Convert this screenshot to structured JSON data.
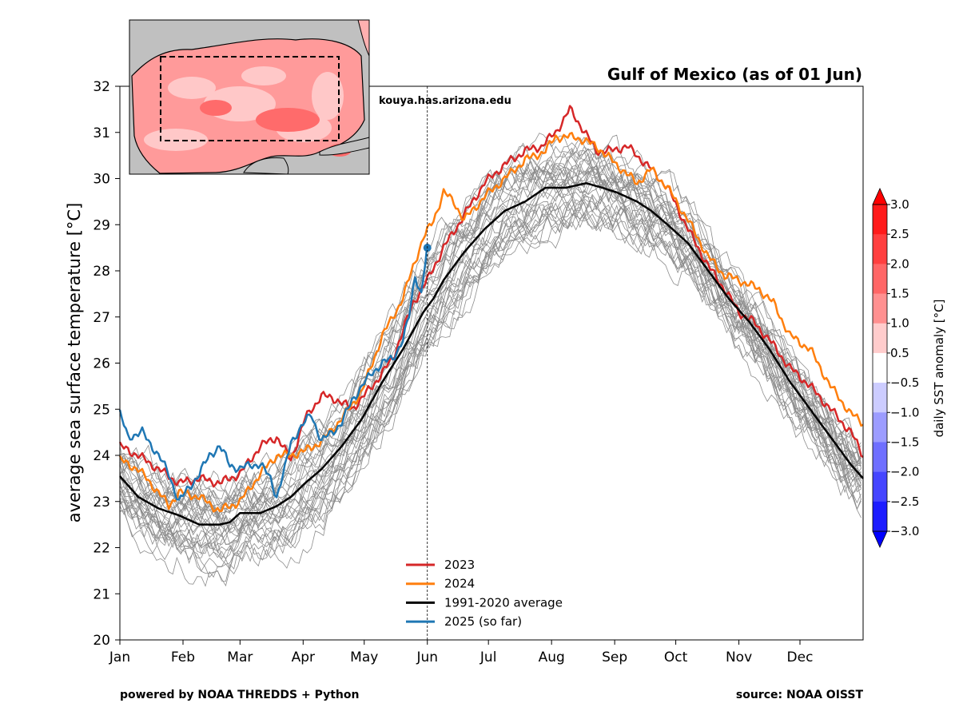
{
  "chart_data": {
    "type": "line",
    "title": "Gulf of Mexico (as of 01 Jun)",
    "ylabel": "average sea surface temperature [°C]",
    "xlabel": "",
    "ylim": [
      20,
      32
    ],
    "yticks": [
      20,
      21,
      22,
      23,
      24,
      25,
      26,
      27,
      28,
      29,
      30,
      31,
      32
    ],
    "x_domain": [
      1,
      366
    ],
    "x_unit": "day of year",
    "month_ticks": [
      {
        "label": "Jan",
        "day": 1
      },
      {
        "label": "Feb",
        "day": 32
      },
      {
        "label": "Mar",
        "day": 60
      },
      {
        "label": "Apr",
        "day": 91
      },
      {
        "label": "May",
        "day": 121
      },
      {
        "label": "Jun",
        "day": 152
      },
      {
        "label": "Jul",
        "day": 182
      },
      {
        "label": "Aug",
        "day": 213
      },
      {
        "label": "Sep",
        "day": 244
      },
      {
        "label": "Oct",
        "day": 274
      },
      {
        "label": "Nov",
        "day": 305
      },
      {
        "label": "Dec",
        "day": 335
      }
    ],
    "reference_line": {
      "day": 152,
      "style": "dotted"
    },
    "watermark": "kouya.has.arizona.edu",
    "grid": false,
    "legend_position": "lower-center",
    "series": [
      {
        "name": "2023",
        "color": "#d62728",
        "width": 2.5,
        "points": [
          [
            1,
            24.2
          ],
          [
            10,
            24.0
          ],
          [
            20,
            23.7
          ],
          [
            30,
            23.4
          ],
          [
            40,
            23.5
          ],
          [
            50,
            23.4
          ],
          [
            60,
            23.6
          ],
          [
            70,
            24.2
          ],
          [
            78,
            24.4
          ],
          [
            85,
            23.9
          ],
          [
            92,
            24.8
          ],
          [
            100,
            25.3
          ],
          [
            108,
            25.2
          ],
          [
            115,
            25.0
          ],
          [
            125,
            25.5
          ],
          [
            135,
            26.1
          ],
          [
            145,
            27.3
          ],
          [
            152,
            27.8
          ],
          [
            160,
            28.5
          ],
          [
            170,
            29.2
          ],
          [
            180,
            29.9
          ],
          [
            190,
            30.3
          ],
          [
            200,
            30.6
          ],
          [
            208,
            30.7
          ],
          [
            215,
            31.0
          ],
          [
            222,
            31.5
          ],
          [
            228,
            31.1
          ],
          [
            235,
            30.6
          ],
          [
            242,
            30.6
          ],
          [
            250,
            30.7
          ],
          [
            255,
            30.5
          ],
          [
            262,
            30.2
          ],
          [
            270,
            29.8
          ],
          [
            280,
            28.9
          ],
          [
            290,
            28.1
          ],
          [
            298,
            27.6
          ],
          [
            305,
            27.1
          ],
          [
            312,
            26.9
          ],
          [
            320,
            26.5
          ],
          [
            330,
            25.9
          ],
          [
            340,
            25.5
          ],
          [
            350,
            25.0
          ],
          [
            360,
            24.5
          ],
          [
            366,
            24.0
          ]
        ]
      },
      {
        "name": "2024",
        "color": "#ff7f0e",
        "width": 2.5,
        "points": [
          [
            1,
            23.9
          ],
          [
            10,
            23.7
          ],
          [
            20,
            23.2
          ],
          [
            25,
            22.9
          ],
          [
            30,
            23.2
          ],
          [
            40,
            23.1
          ],
          [
            50,
            22.8
          ],
          [
            60,
            23.0
          ],
          [
            70,
            23.6
          ],
          [
            78,
            24.0
          ],
          [
            85,
            24.0
          ],
          [
            92,
            24.1
          ],
          [
            100,
            24.3
          ],
          [
            110,
            24.8
          ],
          [
            120,
            25.4
          ],
          [
            130,
            26.6
          ],
          [
            140,
            27.4
          ],
          [
            145,
            28.1
          ],
          [
            150,
            28.7
          ],
          [
            155,
            29.1
          ],
          [
            160,
            29.7
          ],
          [
            165,
            29.5
          ],
          [
            170,
            29.1
          ],
          [
            180,
            29.6
          ],
          [
            190,
            30.0
          ],
          [
            200,
            30.4
          ],
          [
            210,
            30.6
          ],
          [
            215,
            30.9
          ],
          [
            225,
            30.9
          ],
          [
            235,
            30.7
          ],
          [
            245,
            30.3
          ],
          [
            255,
            29.9
          ],
          [
            262,
            30.2
          ],
          [
            270,
            29.8
          ],
          [
            280,
            29.1
          ],
          [
            290,
            28.3
          ],
          [
            298,
            27.9
          ],
          [
            305,
            27.8
          ],
          [
            315,
            27.6
          ],
          [
            322,
            27.3
          ],
          [
            330,
            26.6
          ],
          [
            340,
            26.3
          ],
          [
            350,
            25.5
          ],
          [
            360,
            24.9
          ],
          [
            366,
            24.7
          ]
        ]
      },
      {
        "name": "1991-2020 average",
        "color": "#000000",
        "width": 2.5,
        "points": [
          [
            1,
            23.55
          ],
          [
            10,
            23.1
          ],
          [
            20,
            22.85
          ],
          [
            30,
            22.7
          ],
          [
            40,
            22.5
          ],
          [
            50,
            22.5
          ],
          [
            55,
            22.55
          ],
          [
            60,
            22.75
          ],
          [
            70,
            22.75
          ],
          [
            78,
            22.9
          ],
          [
            85,
            23.1
          ],
          [
            92,
            23.4
          ],
          [
            100,
            23.7
          ],
          [
            110,
            24.2
          ],
          [
            120,
            24.8
          ],
          [
            130,
            25.6
          ],
          [
            140,
            26.3
          ],
          [
            150,
            27.1
          ],
          [
            155,
            27.4
          ],
          [
            160,
            27.8
          ],
          [
            170,
            28.4
          ],
          [
            180,
            28.9
          ],
          [
            190,
            29.3
          ],
          [
            200,
            29.5
          ],
          [
            210,
            29.8
          ],
          [
            220,
            29.8
          ],
          [
            230,
            29.9
          ],
          [
            238,
            29.8
          ],
          [
            245,
            29.7
          ],
          [
            255,
            29.5
          ],
          [
            262,
            29.3
          ],
          [
            270,
            29.0
          ],
          [
            280,
            28.6
          ],
          [
            290,
            28.0
          ],
          [
            300,
            27.4
          ],
          [
            310,
            26.9
          ],
          [
            320,
            26.3
          ],
          [
            330,
            25.6
          ],
          [
            340,
            25.0
          ],
          [
            350,
            24.4
          ],
          [
            360,
            23.8
          ],
          [
            366,
            23.5
          ]
        ]
      },
      {
        "name": "2025 (so far)",
        "color": "#1f77b4",
        "width": 2.5,
        "end_marker": true,
        "points": [
          [
            1,
            24.9
          ],
          [
            5,
            24.4
          ],
          [
            12,
            24.5
          ],
          [
            20,
            24.0
          ],
          [
            25,
            23.6
          ],
          [
            30,
            23.0
          ],
          [
            35,
            23.3
          ],
          [
            40,
            23.6
          ],
          [
            45,
            24.0
          ],
          [
            50,
            24.2
          ],
          [
            55,
            23.8
          ],
          [
            60,
            23.7
          ],
          [
            65,
            23.8
          ],
          [
            70,
            23.8
          ],
          [
            75,
            23.5
          ],
          [
            78,
            23.1
          ],
          [
            82,
            23.7
          ],
          [
            85,
            24.3
          ],
          [
            90,
            24.6
          ],
          [
            95,
            24.9
          ],
          [
            100,
            24.3
          ],
          [
            105,
            24.5
          ],
          [
            110,
            24.7
          ],
          [
            115,
            25.2
          ],
          [
            120,
            25.5
          ],
          [
            125,
            25.8
          ],
          [
            130,
            26.0
          ],
          [
            135,
            26.1
          ],
          [
            140,
            26.5
          ],
          [
            143,
            27.0
          ],
          [
            146,
            27.9
          ],
          [
            149,
            27.5
          ],
          [
            152,
            28.5
          ]
        ]
      }
    ],
    "background_years_note": "thin gray lines show individual years",
    "colorbar": {
      "label": "daily SST anomaly [°C]",
      "ticks": [
        "3.0",
        "2.5",
        "2.0",
        "1.5",
        "1.0",
        "0.5",
        "−0.5",
        "−1.0",
        "−1.5",
        "−2.0",
        "−2.5",
        "−3.0"
      ],
      "bins": [
        "#ff1a1a",
        "#ff3f3f",
        "#ff6666",
        "#ff9090",
        "#ffcccc",
        "#ffffff",
        "#ccccff",
        "#9c9cff",
        "#6f6fff",
        "#4545ff",
        "#1c1cff"
      ],
      "extend_top_color": "#ff0000",
      "extend_bottom_color": "#0000ff"
    }
  },
  "footer": {
    "left": "powered by NOAA THREDDS + Python",
    "right": "source: NOAA OISST"
  }
}
